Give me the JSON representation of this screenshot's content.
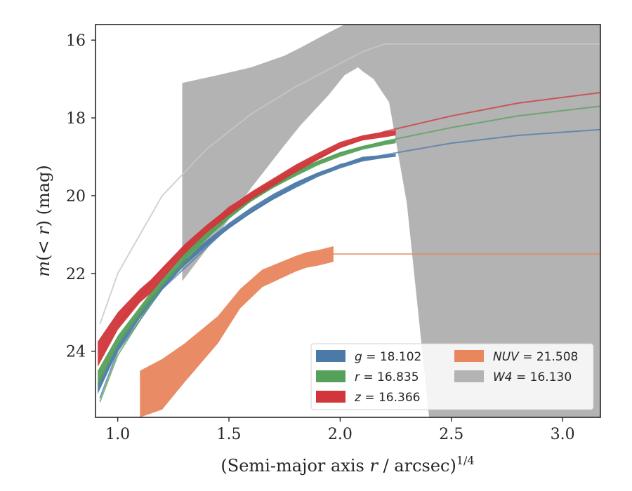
{
  "chart_data": {
    "type": "area",
    "xlabel": "(Semi-major axis r / arcsec)^1/4",
    "ylabel": "m(< r) (mag)",
    "xlim": [
      0.9,
      3.17
    ],
    "ylim": [
      25.7,
      15.6
    ],
    "y_inverted": true,
    "x_ticks": [
      "1.0",
      "1.5",
      "2.0",
      "2.5",
      "3.0"
    ],
    "y_ticks": [
      "16",
      "18",
      "20",
      "22",
      "24"
    ],
    "grid": false,
    "legend_placement": "lower-right",
    "legend": [
      {
        "name": "g",
        "value": "18.102"
      },
      {
        "name": "r",
        "value": "16.835"
      },
      {
        "name": "z",
        "value": "16.366"
      },
      {
        "name": "NUV",
        "value": "21.508"
      },
      {
        "name": "W4",
        "value": "16.130"
      }
    ],
    "series": [
      {
        "name": "W4",
        "color": "#b3b3b3",
        "band_x": [
          1.29,
          1.45,
          1.6,
          1.75,
          1.82,
          1.95,
          2.02,
          2.08,
          2.1,
          2.15,
          2.22,
          2.3,
          2.4,
          2.5,
          2.6,
          2.8,
          3.0,
          3.17
        ],
        "band_upper": [
          17.1,
          16.9,
          16.7,
          16.4,
          16.2,
          15.8,
          15.6,
          15.6,
          15.6,
          15.6,
          15.6,
          15.6,
          15.6,
          15.6,
          15.6,
          15.6,
          15.6,
          15.6
        ],
        "band_lower": [
          22.2,
          21.0,
          19.8,
          18.7,
          18.2,
          17.4,
          16.9,
          16.7,
          16.8,
          17.0,
          17.6,
          20.2,
          25.7,
          25.7,
          25.7,
          25.7,
          25.7,
          25.7
        ],
        "model_x": [
          0.92,
          1.0,
          1.2,
          1.4,
          1.6,
          1.8,
          2.0,
          2.1,
          2.2,
          2.3,
          2.4,
          3.17
        ],
        "model_y": [
          23.3,
          22.0,
          20.0,
          18.8,
          17.9,
          17.2,
          16.6,
          16.3,
          16.1,
          16.1,
          16.1,
          16.1
        ]
      },
      {
        "name": "NUV",
        "color": "#e8865e",
        "band_x": [
          1.1,
          1.2,
          1.3,
          1.45,
          1.55,
          1.65,
          1.8,
          1.85,
          1.9,
          1.97
        ],
        "band_upper": [
          24.5,
          24.2,
          23.8,
          23.1,
          22.4,
          21.9,
          21.55,
          21.45,
          21.4,
          21.3
        ],
        "band_lower": [
          25.7,
          25.5,
          24.8,
          23.8,
          22.9,
          22.35,
          21.95,
          21.85,
          21.8,
          21.7
        ],
        "model_x": [
          1.95,
          2.0,
          2.2,
          2.5,
          3.17
        ],
        "model_y": [
          21.5,
          21.5,
          21.5,
          21.5,
          21.5
        ]
      },
      {
        "name": "g",
        "color": "#4c7aa8",
        "band_x": [
          0.91,
          1.0,
          1.1,
          1.2,
          1.3,
          1.4,
          1.5,
          1.6,
          1.7,
          1.8,
          1.9,
          2.0,
          2.1,
          2.2,
          2.25
        ],
        "band_upper": [
          24.8,
          23.8,
          22.95,
          22.25,
          21.65,
          21.15,
          20.7,
          20.3,
          19.95,
          19.65,
          19.4,
          19.2,
          19.0,
          18.95,
          18.92
        ],
        "band_lower": [
          25.1,
          24.0,
          23.15,
          22.42,
          21.8,
          21.3,
          20.85,
          20.45,
          20.1,
          19.8,
          19.52,
          19.3,
          19.12,
          19.03,
          19.0
        ],
        "model_x": [
          0.92,
          1.0,
          1.2,
          1.5,
          1.8,
          2.0,
          2.2,
          2.5,
          2.8,
          3.17
        ],
        "model_y": [
          25.2,
          24.0,
          22.4,
          20.8,
          19.7,
          19.2,
          18.95,
          18.65,
          18.45,
          18.3
        ]
      },
      {
        "name": "r",
        "color": "#55a05a",
        "band_x": [
          0.91,
          1.0,
          1.1,
          1.2,
          1.3,
          1.4,
          1.5,
          1.6,
          1.7,
          1.8,
          1.9,
          2.0,
          2.1,
          2.2,
          2.25
        ],
        "band_upper": [
          24.5,
          23.6,
          22.85,
          22.1,
          21.45,
          20.9,
          20.4,
          20.0,
          19.65,
          19.35,
          19.1,
          18.88,
          18.72,
          18.6,
          18.55
        ],
        "band_lower": [
          24.9,
          23.85,
          23.05,
          22.3,
          21.65,
          21.1,
          20.6,
          20.15,
          19.8,
          19.5,
          19.22,
          19.0,
          18.82,
          18.7,
          18.65
        ],
        "model_x": [
          0.92,
          1.0,
          1.2,
          1.5,
          1.8,
          2.0,
          2.2,
          2.5,
          2.8,
          3.17
        ],
        "model_y": [
          25.3,
          24.1,
          22.3,
          20.5,
          19.4,
          18.9,
          18.6,
          18.25,
          17.95,
          17.7
        ]
      },
      {
        "name": "z",
        "color": "#d0363a",
        "band_x": [
          0.91,
          1.0,
          1.1,
          1.15,
          1.2,
          1.3,
          1.4,
          1.5,
          1.6,
          1.7,
          1.8,
          1.9,
          2.0,
          2.1,
          2.2,
          2.25
        ],
        "band_upper": [
          23.75,
          23.0,
          22.4,
          22.15,
          21.85,
          21.25,
          20.75,
          20.3,
          19.9,
          19.55,
          19.2,
          18.9,
          18.62,
          18.45,
          18.35,
          18.32
        ],
        "band_lower": [
          24.4,
          23.45,
          22.75,
          22.5,
          22.15,
          21.5,
          20.95,
          20.5,
          20.1,
          19.75,
          19.4,
          19.08,
          18.78,
          18.58,
          18.5,
          18.45
        ],
        "model_x": [
          1.0,
          1.2,
          1.5,
          1.8,
          2.0,
          2.2,
          2.5,
          2.8,
          3.17
        ],
        "model_y": [
          23.3,
          21.9,
          20.3,
          19.3,
          18.75,
          18.35,
          17.95,
          17.62,
          17.35
        ]
      }
    ]
  }
}
